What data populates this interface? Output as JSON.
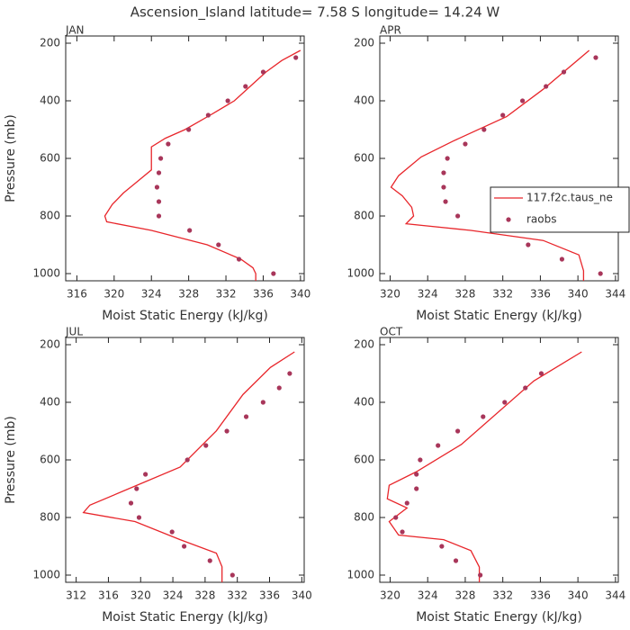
{
  "title": "Ascension_Island  latitude= 7.58 S longitude= 14.24 W",
  "chart_data": [
    {
      "type": "line",
      "label": "JAN",
      "xlabel": "Moist Static Energy (kJ/kg)",
      "ylabel": "Pressure (mb)",
      "xlim": [
        314.8,
        340.4
      ],
      "xticks": [
        316,
        320,
        324,
        328,
        332,
        336,
        340
      ],
      "ylim": [
        1025,
        175
      ],
      "yticks": [
        200,
        400,
        600,
        800,
        1000
      ],
      "series": [
        {
          "type": "line",
          "color": "#e8262b",
          "x": [
            340.0,
            338.0,
            336.3,
            334.6,
            332.9,
            330.3,
            327.6,
            325.5,
            324.0,
            324.0,
            324.0,
            322.5,
            321.0,
            319.8,
            319.0,
            319.2,
            324.0,
            330.0,
            333.6,
            334.9,
            335.2,
            335.2
          ],
          "y": [
            225,
            260,
            300,
            350,
            400,
            450,
            500,
            530,
            560,
            600,
            640,
            680,
            720,
            760,
            800,
            820,
            850,
            900,
            950,
            980,
            1000,
            1025
          ]
        },
        {
          "type": "scatter",
          "color": "#a8365a",
          "x": [
            339.5,
            336.0,
            334.1,
            332.2,
            330.1,
            328.0,
            325.8,
            325.0,
            324.8,
            324.6,
            324.8,
            324.8,
            328.1,
            331.2,
            333.4,
            337.1
          ],
          "y": [
            250,
            300,
            350,
            400,
            450,
            500,
            550,
            600,
            650,
            700,
            750,
            800,
            850,
            900,
            950,
            1000
          ]
        }
      ]
    },
    {
      "type": "line",
      "label": "APR",
      "xlabel": "Moist Static Energy (kJ/kg)",
      "legend": "right",
      "xlim": [
        318.9,
        344.3
      ],
      "xticks": [
        320,
        324,
        328,
        332,
        336,
        340,
        344
      ],
      "ylim": [
        1025,
        175
      ],
      "yticks": [
        200,
        400,
        600,
        800,
        1000
      ],
      "series": [
        {
          "type": "line",
          "name": "117.f2c.taus_ne",
          "color": "#e8262b",
          "x": [
            341.2,
            336.3,
            332.4,
            326.7,
            323.3,
            320.9,
            320.1,
            321.3,
            322.3,
            322.5,
            321.7,
            328.6,
            336.3,
            340.1,
            340.6,
            340.6
          ],
          "y": [
            225,
            360,
            455,
            540,
            595,
            660,
            700,
            730,
            770,
            800,
            827,
            850,
            885,
            935,
            990,
            1025
          ]
        },
        {
          "type": "scatter",
          "name": "raobs",
          "color": "#a8365a",
          "x": [
            341.9,
            338.5,
            336.6,
            334.1,
            332.0,
            330.0,
            328.0,
            326.1,
            325.7,
            325.7,
            325.9,
            327.2,
            331.3,
            334.7,
            338.3,
            342.4
          ],
          "y": [
            250,
            300,
            350,
            400,
            450,
            500,
            550,
            600,
            650,
            700,
            750,
            800,
            850,
            900,
            950,
            1000
          ]
        }
      ]
    },
    {
      "type": "line",
      "label": "JUL",
      "xlabel": "Moist Static Energy (kJ/kg)",
      "ylabel": "Pressure (mb)",
      "xlim": [
        310.7,
        340.3
      ],
      "xticks": [
        312,
        316,
        320,
        324,
        328,
        332,
        336,
        340
      ],
      "ylim": [
        1025,
        175
      ],
      "yticks": [
        200,
        400,
        600,
        800,
        1000
      ],
      "series": [
        {
          "type": "line",
          "color": "#e8262b",
          "x": [
            339.1,
            336.1,
            332.7,
            329.4,
            324.9,
            318.2,
            313.7,
            312.9,
            319.3,
            324.9,
            329.4,
            330.1,
            330.1
          ],
          "y": [
            225,
            279,
            373,
            499,
            625,
            704,
            757,
            783,
            814,
            877,
            924,
            971,
            1025
          ]
        },
        {
          "type": "scatter",
          "color": "#a8365a",
          "x": [
            338.5,
            337.2,
            335.2,
            333.1,
            330.7,
            328.1,
            325.8,
            320.6,
            319.5,
            318.8,
            319.8,
            323.9,
            325.4,
            328.6,
            331.4
          ],
          "y": [
            300,
            350,
            400,
            450,
            500,
            550,
            600,
            650,
            700,
            750,
            800,
            850,
            900,
            950,
            1000
          ]
        }
      ]
    },
    {
      "type": "line",
      "label": "OCT",
      "xlabel": "Moist Static Energy (kJ/kg)",
      "xlim": [
        318.9,
        344.3
      ],
      "xticks": [
        320,
        324,
        328,
        332,
        336,
        340,
        344
      ],
      "ylim": [
        1025,
        175
      ],
      "yticks": [
        200,
        400,
        600,
        800,
        1000
      ],
      "series": [
        {
          "type": "line",
          "color": "#e8262b",
          "x": [
            340.4,
            335.3,
            327.6,
            322.8,
            319.9,
            319.7,
            321.8,
            319.9,
            320.9,
            325.7,
            328.6,
            329.5,
            329.5
          ],
          "y": [
            225,
            326,
            546,
            641,
            688,
            735,
            767,
            814,
            861,
            877,
            915,
            972,
            1025
          ]
        },
        {
          "type": "scatter",
          "color": "#a8365a",
          "x": [
            336.1,
            334.4,
            332.2,
            329.9,
            327.2,
            325.1,
            323.2,
            322.8,
            322.8,
            321.8,
            320.6,
            321.3,
            325.5,
            327.0,
            329.6
          ],
          "y": [
            300,
            350,
            400,
            450,
            500,
            550,
            600,
            650,
            700,
            750,
            800,
            850,
            900,
            950,
            1000
          ]
        }
      ]
    }
  ]
}
